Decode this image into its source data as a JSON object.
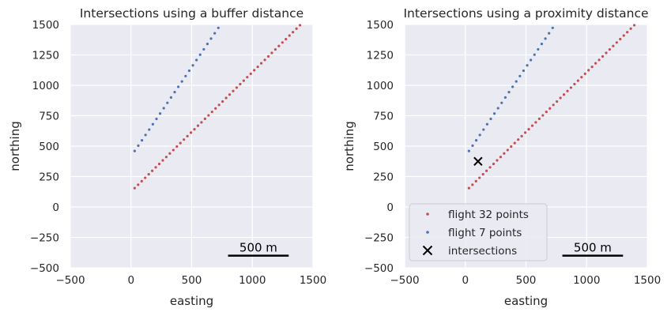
{
  "chart_data": [
    {
      "type": "scatter",
      "title": "Intersections using a buffer distance",
      "xlabel": "easting",
      "ylabel": "northing",
      "xlim": [
        -500,
        1500
      ],
      "ylim": [
        -500,
        1500
      ],
      "xticks": [
        "−500",
        "0",
        "500",
        "1000",
        "1500"
      ],
      "yticks": [
        "−500",
        "−250",
        "0",
        "250",
        "500",
        "750",
        "1000",
        "1250",
        "1500"
      ],
      "grid": true,
      "series": [
        {
          "color": "#c44e52",
          "points": [
            [
              30,
              155
            ],
            [
              59,
              183
            ],
            [
              88,
              212
            ],
            [
              117,
              240
            ],
            [
              146,
              269
            ],
            [
              175,
              297
            ],
            [
              204,
              326
            ],
            [
              233,
              354
            ],
            [
              262,
              383
            ],
            [
              291,
              411
            ],
            [
              320,
              440
            ],
            [
              349,
              468
            ],
            [
              378,
              497
            ],
            [
              407,
              525
            ],
            [
              436,
              554
            ],
            [
              465,
              582
            ],
            [
              494,
              611
            ],
            [
              523,
              639
            ],
            [
              552,
              668
            ],
            [
              581,
              696
            ],
            [
              610,
              725
            ],
            [
              639,
              753
            ],
            [
              668,
              782
            ],
            [
              697,
              810
            ],
            [
              726,
              839
            ],
            [
              755,
              867
            ],
            [
              784,
              896
            ],
            [
              813,
              924
            ],
            [
              842,
              953
            ],
            [
              871,
              981
            ],
            [
              900,
              1010
            ],
            [
              929,
              1038
            ],
            [
              958,
              1067
            ],
            [
              987,
              1095
            ],
            [
              1016,
              1124
            ],
            [
              1045,
              1152
            ],
            [
              1074,
              1181
            ],
            [
              1103,
              1209
            ],
            [
              1132,
              1238
            ],
            [
              1161,
              1266
            ],
            [
              1190,
              1295
            ],
            [
              1219,
              1323
            ],
            [
              1248,
              1352
            ],
            [
              1277,
              1380
            ],
            [
              1306,
              1409
            ],
            [
              1335,
              1437
            ],
            [
              1364,
              1466
            ],
            [
              1393,
              1494
            ]
          ]
        },
        {
          "color": "#4c72b0",
          "points": [
            [
              30,
              460
            ],
            [
              60,
              504
            ],
            [
              90,
              548
            ],
            [
              120,
              592
            ],
            [
              150,
              636
            ],
            [
              180,
              680
            ],
            [
              210,
              724
            ],
            [
              240,
              768
            ],
            [
              270,
              812
            ],
            [
              300,
              856
            ],
            [
              330,
              900
            ],
            [
              360,
              944
            ],
            [
              390,
              988
            ],
            [
              420,
              1032
            ],
            [
              450,
              1076
            ],
            [
              480,
              1120
            ],
            [
              510,
              1164
            ],
            [
              540,
              1208
            ],
            [
              570,
              1252
            ],
            [
              600,
              1296
            ],
            [
              630,
              1340
            ],
            [
              660,
              1384
            ],
            [
              690,
              1428
            ],
            [
              720,
              1472
            ]
          ]
        }
      ],
      "scalebar": {
        "label": "500 m",
        "from": 800,
        "to": 1300,
        "y": -400
      }
    },
    {
      "type": "scatter",
      "title": "Intersections using a proximity distance",
      "xlabel": "easting",
      "ylabel": "northing",
      "xlim": [
        -500,
        1500
      ],
      "ylim": [
        -500,
        1500
      ],
      "xticks": [
        "−500",
        "0",
        "500",
        "1000",
        "1500"
      ],
      "yticks": [
        "−500",
        "−250",
        "0",
        "250",
        "500",
        "750",
        "1000",
        "1250",
        "1500"
      ],
      "grid": true,
      "series": [
        {
          "name": "flight 32 points",
          "color": "#c44e52",
          "points": [
            [
              30,
              155
            ],
            [
              59,
              183
            ],
            [
              88,
              212
            ],
            [
              117,
              240
            ],
            [
              146,
              269
            ],
            [
              175,
              297
            ],
            [
              204,
              326
            ],
            [
              233,
              354
            ],
            [
              262,
              383
            ],
            [
              291,
              411
            ],
            [
              320,
              440
            ],
            [
              349,
              468
            ],
            [
              378,
              497
            ],
            [
              407,
              525
            ],
            [
              436,
              554
            ],
            [
              465,
              582
            ],
            [
              494,
              611
            ],
            [
              523,
              639
            ],
            [
              552,
              668
            ],
            [
              581,
              696
            ],
            [
              610,
              725
            ],
            [
              639,
              753
            ],
            [
              668,
              782
            ],
            [
              697,
              810
            ],
            [
              726,
              839
            ],
            [
              755,
              867
            ],
            [
              784,
              896
            ],
            [
              813,
              924
            ],
            [
              842,
              953
            ],
            [
              871,
              981
            ],
            [
              900,
              1010
            ],
            [
              929,
              1038
            ],
            [
              958,
              1067
            ],
            [
              987,
              1095
            ],
            [
              1016,
              1124
            ],
            [
              1045,
              1152
            ],
            [
              1074,
              1181
            ],
            [
              1103,
              1209
            ],
            [
              1132,
              1238
            ],
            [
              1161,
              1266
            ],
            [
              1190,
              1295
            ],
            [
              1219,
              1323
            ],
            [
              1248,
              1352
            ],
            [
              1277,
              1380
            ],
            [
              1306,
              1409
            ],
            [
              1335,
              1437
            ],
            [
              1364,
              1466
            ],
            [
              1393,
              1494
            ]
          ]
        },
        {
          "name": "flight 7 points",
          "color": "#4c72b0",
          "points": [
            [
              30,
              460
            ],
            [
              60,
              504
            ],
            [
              90,
              548
            ],
            [
              120,
              592
            ],
            [
              150,
              636
            ],
            [
              180,
              680
            ],
            [
              210,
              724
            ],
            [
              240,
              768
            ],
            [
              270,
              812
            ],
            [
              300,
              856
            ],
            [
              330,
              900
            ],
            [
              360,
              944
            ],
            [
              390,
              988
            ],
            [
              420,
              1032
            ],
            [
              450,
              1076
            ],
            [
              480,
              1120
            ],
            [
              510,
              1164
            ],
            [
              540,
              1208
            ],
            [
              570,
              1252
            ],
            [
              600,
              1296
            ],
            [
              630,
              1340
            ],
            [
              660,
              1384
            ],
            [
              690,
              1428
            ],
            [
              720,
              1472
            ]
          ]
        },
        {
          "name": "intersections",
          "color": "#000000",
          "marker": "x",
          "points": [
            [
              105,
              375
            ]
          ]
        }
      ],
      "legend": {
        "position": "lower-left"
      },
      "scalebar": {
        "label": "500 m",
        "from": 800,
        "to": 1300,
        "y": -400
      }
    }
  ]
}
